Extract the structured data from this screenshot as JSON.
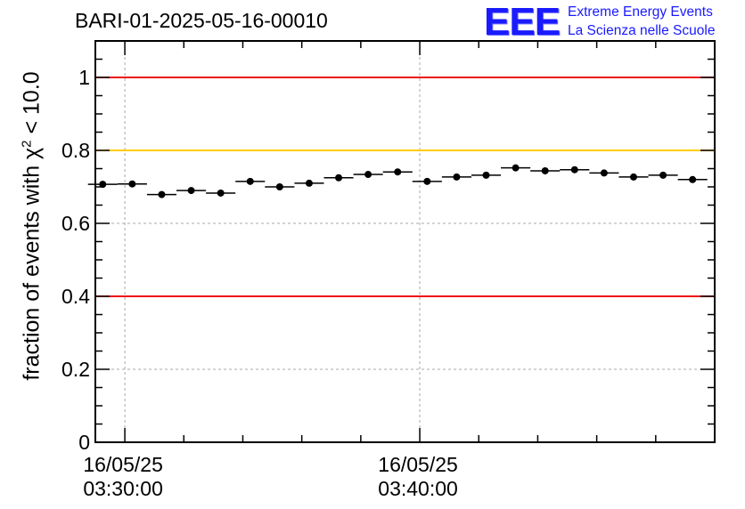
{
  "chart_data": {
    "type": "scatter",
    "title": "BARI-01-2025-05-16-00010",
    "ylabel": "fraction of events with χ",
    "ylabel_sup": "2",
    "ylabel_suffix": " < 10.0",
    "xlabel": "",
    "ylim": [
      0,
      1.1
    ],
    "yticks": [
      "0",
      "0.2",
      "0.4",
      "0.6",
      "0.8",
      "1"
    ],
    "ytick_values": [
      0,
      0.2,
      0.4,
      0.6,
      0.8,
      1.0
    ],
    "xlim_minutes": [
      -1,
      20
    ],
    "xticks": [
      {
        "minute": 0,
        "line1": "16/05/25",
        "line2": "03:30:00"
      },
      {
        "minute": 10,
        "line1": "16/05/25",
        "line2": "03:40:00"
      }
    ],
    "bin_width_minutes": 1,
    "x_minutes": [
      -0.75,
      0.25,
      1.25,
      2.25,
      3.25,
      4.25,
      5.25,
      6.25,
      7.25,
      8.25,
      9.25,
      10.25,
      11.25,
      12.25,
      13.25,
      14.25,
      15.25,
      16.25,
      17.25,
      18.25,
      19.25
    ],
    "values": [
      0.707,
      0.708,
      0.679,
      0.69,
      0.683,
      0.715,
      0.7,
      0.71,
      0.725,
      0.734,
      0.741,
      0.715,
      0.727,
      0.732,
      0.752,
      0.744,
      0.747,
      0.738,
      0.727,
      0.732,
      0.72
    ],
    "reference_lines": [
      {
        "value": 1.0,
        "color": "#ee1111"
      },
      {
        "value": 0.8,
        "color": "#ffcc00"
      },
      {
        "value": 0.4,
        "color": "#ee1111"
      }
    ],
    "grid": true
  },
  "branding": {
    "logo": "EEE",
    "line1": "Extreme Energy Events",
    "line2": "La Scienza nelle Scuole",
    "color": "#1a1aff"
  }
}
